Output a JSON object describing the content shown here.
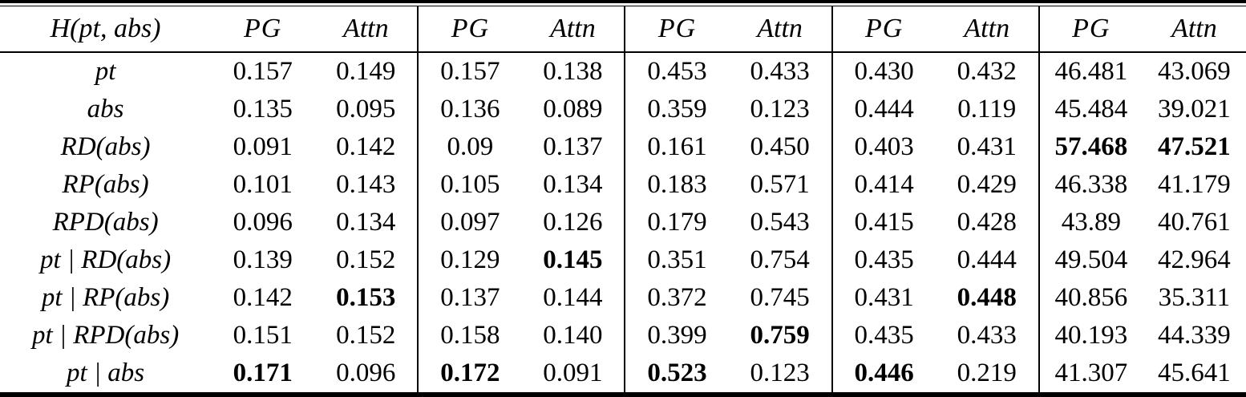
{
  "colors": {
    "background": "#ffffff",
    "text": "#000000",
    "rule": "#000000"
  },
  "table": {
    "header": {
      "label": "H(pt, abs)",
      "groups": [
        {
          "pg": "PG",
          "attn": "Attn"
        },
        {
          "pg": "PG",
          "attn": "Attn"
        },
        {
          "pg": "PG",
          "attn": "Attn"
        },
        {
          "pg": "PG",
          "attn": "Attn"
        },
        {
          "pg": "PG",
          "attn": "Attn"
        }
      ]
    },
    "rows": [
      {
        "label": "pt",
        "cells": [
          {
            "v": "0.157",
            "bold": false
          },
          {
            "v": "0.149",
            "bold": false
          },
          {
            "v": "0.157",
            "bold": false
          },
          {
            "v": "0.138",
            "bold": false
          },
          {
            "v": "0.453",
            "bold": false
          },
          {
            "v": "0.433",
            "bold": false
          },
          {
            "v": "0.430",
            "bold": false
          },
          {
            "v": "0.432",
            "bold": false
          },
          {
            "v": "46.481",
            "bold": false
          },
          {
            "v": "43.069",
            "bold": false
          }
        ]
      },
      {
        "label": "abs",
        "cells": [
          {
            "v": "0.135",
            "bold": false
          },
          {
            "v": "0.095",
            "bold": false
          },
          {
            "v": "0.136",
            "bold": false
          },
          {
            "v": "0.089",
            "bold": false
          },
          {
            "v": "0.359",
            "bold": false
          },
          {
            "v": "0.123",
            "bold": false
          },
          {
            "v": "0.444",
            "bold": false
          },
          {
            "v": "0.119",
            "bold": false
          },
          {
            "v": "45.484",
            "bold": false
          },
          {
            "v": "39.021",
            "bold": false
          }
        ]
      },
      {
        "label": "RD(abs)",
        "cells": [
          {
            "v": "0.091",
            "bold": false
          },
          {
            "v": "0.142",
            "bold": false
          },
          {
            "v": "0.09",
            "bold": false
          },
          {
            "v": "0.137",
            "bold": false
          },
          {
            "v": "0.161",
            "bold": false
          },
          {
            "v": "0.450",
            "bold": false
          },
          {
            "v": "0.403",
            "bold": false
          },
          {
            "v": "0.431",
            "bold": false
          },
          {
            "v": "57.468",
            "bold": true
          },
          {
            "v": "47.521",
            "bold": true
          }
        ]
      },
      {
        "label": "RP(abs)",
        "cells": [
          {
            "v": "0.101",
            "bold": false
          },
          {
            "v": "0.143",
            "bold": false
          },
          {
            "v": "0.105",
            "bold": false
          },
          {
            "v": "0.134",
            "bold": false
          },
          {
            "v": "0.183",
            "bold": false
          },
          {
            "v": "0.571",
            "bold": false
          },
          {
            "v": "0.414",
            "bold": false
          },
          {
            "v": "0.429",
            "bold": false
          },
          {
            "v": "46.338",
            "bold": false
          },
          {
            "v": "41.179",
            "bold": false
          }
        ]
      },
      {
        "label": "RPD(abs)",
        "cells": [
          {
            "v": "0.096",
            "bold": false
          },
          {
            "v": "0.134",
            "bold": false
          },
          {
            "v": "0.097",
            "bold": false
          },
          {
            "v": "0.126",
            "bold": false
          },
          {
            "v": "0.179",
            "bold": false
          },
          {
            "v": "0.543",
            "bold": false
          },
          {
            "v": "0.415",
            "bold": false
          },
          {
            "v": "0.428",
            "bold": false
          },
          {
            "v": "43.89",
            "bold": false
          },
          {
            "v": "40.761",
            "bold": false
          }
        ]
      },
      {
        "label": "pt | RD(abs)",
        "cells": [
          {
            "v": "0.139",
            "bold": false
          },
          {
            "v": "0.152",
            "bold": false
          },
          {
            "v": "0.129",
            "bold": false
          },
          {
            "v": "0.145",
            "bold": true
          },
          {
            "v": "0.351",
            "bold": false
          },
          {
            "v": "0.754",
            "bold": false
          },
          {
            "v": "0.435",
            "bold": false
          },
          {
            "v": "0.444",
            "bold": false
          },
          {
            "v": "49.504",
            "bold": false
          },
          {
            "v": "42.964",
            "bold": false
          }
        ]
      },
      {
        "label": "pt | RP(abs)",
        "cells": [
          {
            "v": "0.142",
            "bold": false
          },
          {
            "v": "0.153",
            "bold": true
          },
          {
            "v": "0.137",
            "bold": false
          },
          {
            "v": "0.144",
            "bold": false
          },
          {
            "v": "0.372",
            "bold": false
          },
          {
            "v": "0.745",
            "bold": false
          },
          {
            "v": "0.431",
            "bold": false
          },
          {
            "v": "0.448",
            "bold": true
          },
          {
            "v": "40.856",
            "bold": false
          },
          {
            "v": "35.311",
            "bold": false
          }
        ]
      },
      {
        "label": "pt | RPD(abs)",
        "cells": [
          {
            "v": "0.151",
            "bold": false
          },
          {
            "v": "0.152",
            "bold": false
          },
          {
            "v": "0.158",
            "bold": false
          },
          {
            "v": "0.140",
            "bold": false
          },
          {
            "v": "0.399",
            "bold": false
          },
          {
            "v": "0.759",
            "bold": true
          },
          {
            "v": "0.435",
            "bold": false
          },
          {
            "v": "0.433",
            "bold": false
          },
          {
            "v": "40.193",
            "bold": false
          },
          {
            "v": "44.339",
            "bold": false
          }
        ]
      },
      {
        "label": "pt | abs",
        "cells": [
          {
            "v": "0.171",
            "bold": true
          },
          {
            "v": "0.096",
            "bold": false
          },
          {
            "v": "0.172",
            "bold": true
          },
          {
            "v": "0.091",
            "bold": false
          },
          {
            "v": "0.523",
            "bold": true
          },
          {
            "v": "0.123",
            "bold": false
          },
          {
            "v": "0.446",
            "bold": true
          },
          {
            "v": "0.219",
            "bold": false
          },
          {
            "v": "41.307",
            "bold": false
          },
          {
            "v": "45.641",
            "bold": false
          }
        ]
      }
    ]
  },
  "chart_data": {
    "type": "table",
    "columns": [
      "H(pt, abs)",
      "PG",
      "Attn",
      "PG",
      "Attn",
      "PG",
      "Attn",
      "PG",
      "Attn",
      "PG",
      "Attn"
    ],
    "rows": [
      [
        "pt",
        0.157,
        0.149,
        0.157,
        0.138,
        0.453,
        0.433,
        0.43,
        0.432,
        46.481,
        43.069
      ],
      [
        "abs",
        0.135,
        0.095,
        0.136,
        0.089,
        0.359,
        0.123,
        0.444,
        0.119,
        45.484,
        39.021
      ],
      [
        "RD(abs)",
        0.091,
        0.142,
        0.09,
        0.137,
        0.161,
        0.45,
        0.403,
        0.431,
        57.468,
        47.521
      ],
      [
        "RP(abs)",
        0.101,
        0.143,
        0.105,
        0.134,
        0.183,
        0.571,
        0.414,
        0.429,
        46.338,
        41.179
      ],
      [
        "RPD(abs)",
        0.096,
        0.134,
        0.097,
        0.126,
        0.179,
        0.543,
        0.415,
        0.428,
        43.89,
        40.761
      ],
      [
        "pt | RD(abs)",
        0.139,
        0.152,
        0.129,
        0.145,
        0.351,
        0.754,
        0.435,
        0.444,
        49.504,
        42.964
      ],
      [
        "pt | RP(abs)",
        0.142,
        0.153,
        0.137,
        0.144,
        0.372,
        0.745,
        0.431,
        0.448,
        40.856,
        35.311
      ],
      [
        "pt | RPD(abs)",
        0.151,
        0.152,
        0.158,
        0.14,
        0.399,
        0.759,
        0.435,
        0.433,
        40.193,
        44.339
      ],
      [
        "pt | abs",
        0.171,
        0.096,
        0.172,
        0.091,
        0.523,
        0.123,
        0.446,
        0.219,
        41.307,
        45.641
      ]
    ]
  }
}
